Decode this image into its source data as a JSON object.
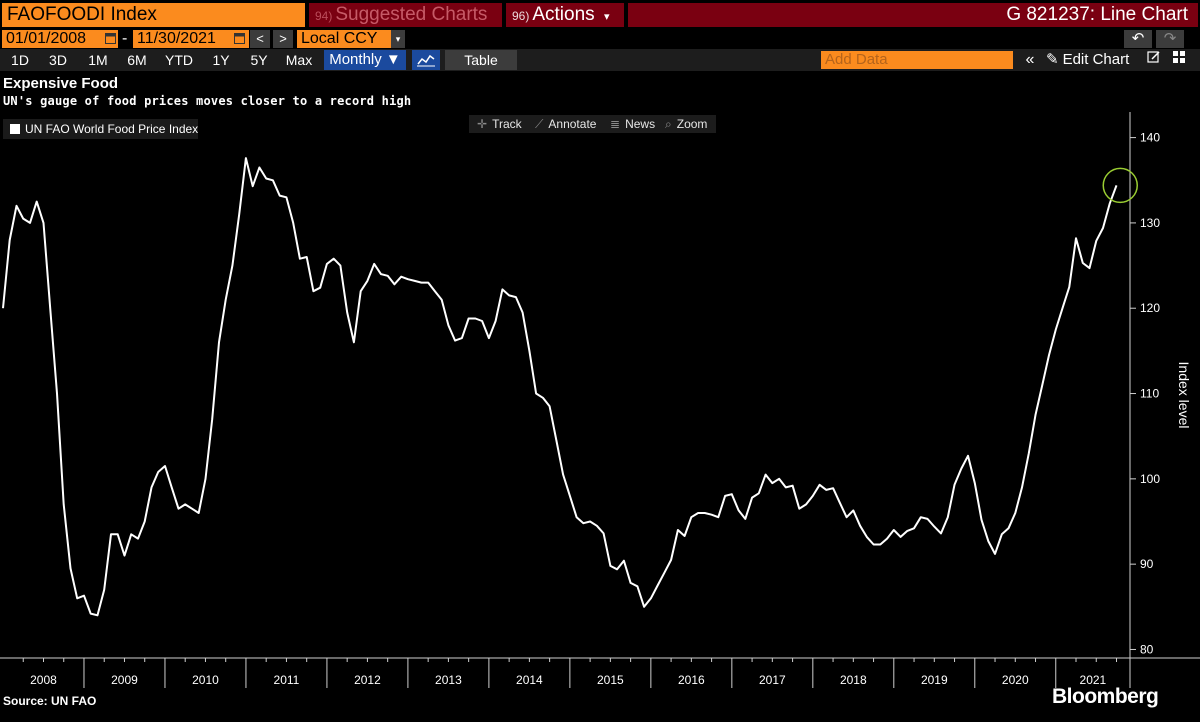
{
  "header": {
    "ticker": "FAOFOODI Index",
    "suggested_num": "94)",
    "suggested_label": "Suggested Charts",
    "actions_num": "96)",
    "actions_label": "Actions",
    "actions_arrow": "▾",
    "chart_title": "G 821237: Line Chart"
  },
  "date_range": {
    "start": "01/01/2008",
    "separator": "-",
    "end": "11/30/2021",
    "prev": "<",
    "next": ">",
    "currency": "Local CCY",
    "currency_arrow": "▾",
    "undo": "↶",
    "redo": "↷"
  },
  "toolbar": {
    "ranges": [
      "1D",
      "3D",
      "1M",
      "6M",
      "YTD",
      "1Y",
      "5Y",
      "Max"
    ],
    "frequency": "Monthly ▼",
    "table_label": "Table",
    "add_data_placeholder": "Add Data",
    "collapse": "«",
    "edit_chart": "Edit Chart",
    "pencil": "✎"
  },
  "chart_tools": {
    "track": "Track",
    "annotate": "Annotate",
    "news": "News",
    "zoom": "Zoom"
  },
  "footer": {
    "source": "Source: UN FAO",
    "brand": "Bloomberg"
  },
  "colors": {
    "orange": "#fb8b1e",
    "maroon": "#7a0011",
    "blue": "#1b4a9e",
    "line": "#ffffff",
    "highlight": "#9acd32"
  },
  "chart_data": {
    "type": "line",
    "title": "Expensive Food",
    "subtitle": "UN's gauge of food prices moves closer to a record high",
    "ylabel": "Index level",
    "xlabel": "",
    "legend": [
      "UN FAO World Food Price Index"
    ],
    "legend_position": "top-left",
    "ylim": [
      79,
      143
    ],
    "yticks": [
      80,
      90,
      100,
      110,
      120,
      130,
      140
    ],
    "xlim": [
      "2008-01",
      "2021-12"
    ],
    "x_tick_labels": [
      "2008",
      "2009",
      "2010",
      "2011",
      "2012",
      "2013",
      "2014",
      "2015",
      "2016",
      "2017",
      "2018",
      "2019",
      "2020",
      "2021"
    ],
    "grid": false,
    "highlight": {
      "x": "2021-11",
      "y": 134.4,
      "shape": "circle"
    },
    "series": [
      {
        "name": "UN FAO World Food Price Index",
        "start": "2008-01",
        "frequency": "monthly",
        "values": [
          120,
          128,
          132,
          130.5,
          130,
          132.5,
          130,
          120,
          110,
          97,
          89.5,
          86,
          86.3,
          84.2,
          84,
          87,
          93.5,
          93.5,
          91,
          93.5,
          93,
          95,
          99,
          100.8,
          101.5,
          99,
          96.5,
          97,
          96.5,
          96,
          100,
          107,
          116,
          121,
          125,
          131,
          137.6,
          134.3,
          136.5,
          135.2,
          135,
          133.2,
          133,
          130,
          125.8,
          126,
          122,
          122.4,
          125.2,
          125.8,
          125,
          119.5,
          116,
          122,
          123.2,
          125.2,
          124,
          123.8,
          122.8,
          123.7,
          123.4,
          123.2,
          123,
          123,
          122,
          121,
          118,
          116.2,
          116.5,
          118.8,
          118.8,
          118.5,
          116.5,
          118.5,
          122.2,
          121.5,
          121.3,
          119.5,
          115,
          110,
          109.5,
          108.5,
          104.5,
          100.5,
          98,
          95.5,
          94.8,
          95,
          94.5,
          93.6,
          89.8,
          89.4,
          90.4,
          87.8,
          87.4,
          85,
          86,
          87.5,
          89,
          90.5,
          94,
          93.3,
          95.5,
          96,
          96,
          95.8,
          95.5,
          98,
          98.2,
          96.3,
          95.3,
          97.8,
          98.3,
          100.5,
          99.5,
          100,
          99,
          99.2,
          96.5,
          97,
          98,
          99.3,
          98.7,
          98.9,
          97.2,
          95.5,
          96.3,
          94.5,
          93.2,
          92.3,
          92.3,
          93,
          94,
          93.2,
          93.9,
          94.2,
          95.5,
          95.3,
          94.4,
          93.6,
          95.5,
          99.3,
          101.2,
          102.7,
          99.5,
          95.2,
          92.7,
          91.2,
          93.5,
          94.2,
          96,
          99,
          103,
          107.5,
          111,
          114.5,
          117.5,
          120,
          122.5,
          128.2,
          125.3,
          124.7,
          127.9,
          129.4,
          132.3,
          134.4
        ]
      }
    ]
  }
}
